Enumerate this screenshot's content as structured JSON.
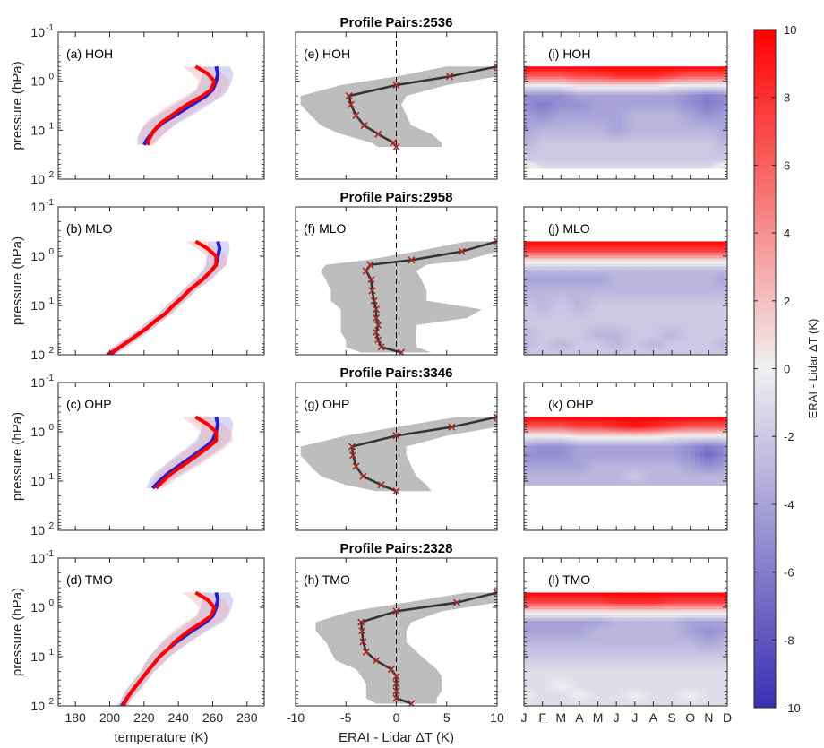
{
  "chart_data": {
    "type": "multi-panel",
    "stations": [
      "HOH",
      "MLO",
      "OHP",
      "TMO"
    ],
    "profile_pair_titles": [
      "Profile Pairs:2536",
      "Profile Pairs:2958",
      "Profile Pairs:3346",
      "Profile Pairs:2328"
    ],
    "panel_labels": {
      "temperature": [
        "(a) HOH",
        "(b) MLO",
        "(c) OHP",
        "(d) TMO"
      ],
      "difference": [
        "(e) HOH",
        "(f) MLO",
        "(g) OHP",
        "(h) TMO"
      ],
      "seasonal": [
        "(i) HOH",
        "(j) MLO",
        "(k) OHP",
        "(l) TMO"
      ]
    },
    "y_axis": {
      "label": "pressure (hPa)",
      "scale": "log",
      "reversed": true,
      "range": [
        0.1,
        100
      ],
      "ticks": [
        0.1,
        1,
        10,
        100
      ],
      "tick_labels": [
        [
          "10",
          "-1"
        ],
        [
          "10",
          "0"
        ],
        [
          "10",
          "1"
        ],
        [
          "10",
          "2"
        ]
      ]
    },
    "temperature_axis": {
      "label": "temperature (K)",
      "range": [
        170,
        290
      ],
      "ticks": [
        180,
        200,
        220,
        240,
        260,
        280
      ],
      "tick_labels": [
        "180",
        "200",
        "220",
        "240",
        "260",
        "280"
      ]
    },
    "difference_axis": {
      "label": "ERAI - Lidar ΔT (K)",
      "range": [
        -10,
        10
      ],
      "ticks": [
        -10,
        -5,
        0,
        5,
        10
      ],
      "tick_labels": [
        "-10",
        "-5",
        "0",
        "5",
        "10"
      ]
    },
    "month_axis": {
      "tick_labels": [
        "J",
        "F",
        "M",
        "A",
        "M",
        "J",
        "J",
        "A",
        "S",
        "O",
        "N",
        "D"
      ]
    },
    "colorbar": {
      "label": "ERAI - Lidar ΔT (K)",
      "range": [
        -10,
        10
      ],
      "ticks": [
        -10,
        -8,
        -6,
        -4,
        -2,
        0,
        2,
        4,
        6,
        8,
        10
      ],
      "tick_labels": [
        "-10",
        "-8",
        "-6",
        "-4",
        "-2",
        "0",
        "2",
        "4",
        "6",
        "8",
        "10"
      ],
      "colors": {
        "min": "#3b2eb3",
        "mid": "#f0f0f0",
        "max": "#ff0000"
      }
    },
    "series_colors": {
      "erai": "#ff0000",
      "lidar": "#1f1fd6",
      "mean_diff": "#333333",
      "markers": "#a52a2a",
      "spread": "#bdbdbd"
    },
    "temperature_profiles": [
      {
        "station": "HOH",
        "pressure": [
          0.5,
          0.7,
          1,
          1.5,
          2,
          3,
          5,
          7,
          10,
          15,
          20
        ],
        "erai": [
          250,
          257,
          261,
          259,
          254,
          245,
          236,
          230,
          226,
          223,
          222
        ],
        "lidar": [
          262,
          263,
          262,
          260,
          256,
          248,
          238,
          231,
          226,
          222,
          220
        ],
        "spread": [
          8,
          9,
          9,
          9,
          10,
          10,
          10,
          9,
          8,
          6,
          4
        ]
      },
      {
        "station": "MLO",
        "pressure": [
          0.5,
          0.7,
          1,
          1.5,
          2,
          3,
          5,
          7,
          10,
          15,
          20,
          30,
          50,
          70,
          100
        ],
        "erai": [
          250,
          257,
          262,
          262,
          259,
          254,
          246,
          242,
          237,
          232,
          227,
          221,
          212,
          206,
          199
        ],
        "lidar": [
          263,
          264,
          263,
          262,
          259,
          254,
          246,
          242,
          237,
          232,
          227,
          221,
          212,
          206,
          200
        ],
        "spread": [
          6,
          6,
          6,
          6,
          5,
          5,
          4,
          4,
          4,
          4,
          4,
          4,
          4,
          4,
          3
        ]
      },
      {
        "station": "OHP",
        "pressure": [
          0.5,
          0.7,
          1,
          1.5,
          2,
          3,
          5,
          7,
          10,
          14
        ],
        "erai": [
          250,
          257,
          262,
          262,
          258,
          251,
          242,
          236,
          231,
          227
        ],
        "lidar": [
          262,
          263,
          262,
          260,
          256,
          249,
          240,
          234,
          229,
          225
        ],
        "spread": [
          8,
          9,
          9,
          10,
          10,
          10,
          9,
          8,
          6,
          4
        ]
      },
      {
        "station": "TMO",
        "pressure": [
          0.5,
          0.7,
          1,
          1.5,
          2,
          3,
          5,
          7,
          10,
          15,
          20,
          30,
          50,
          70,
          100
        ],
        "erai": [
          250,
          257,
          261,
          259,
          254,
          246,
          238,
          234,
          229,
          225,
          222,
          218,
          213,
          210,
          208
        ],
        "lidar": [
          262,
          263,
          262,
          260,
          256,
          248,
          239,
          234,
          229,
          225,
          222,
          218,
          213,
          210,
          207
        ],
        "spread": [
          8,
          9,
          9,
          9,
          10,
          9,
          8,
          7,
          6,
          5,
          4,
          4,
          4,
          3,
          3
        ]
      }
    ],
    "difference_profiles": [
      {
        "station": "HOH",
        "pressure": [
          0.5,
          0.8,
          1.2,
          2,
          3,
          5,
          8,
          12,
          18,
          22
        ],
        "mean": [
          10,
          5.3,
          0,
          -4.7,
          -4.5,
          -4,
          -3.2,
          -1.8,
          -0.3,
          0
        ],
        "spread_low": [
          5,
          0,
          -5.5,
          -9.5,
          -9.5,
          -8.5,
          -7.5,
          -5.5,
          -2.5,
          -1.8
        ],
        "spread_high": [
          10,
          10,
          5,
          1,
          0.5,
          1,
          1.5,
          3.5,
          4.5,
          4.5
        ]
      },
      {
        "station": "MLO",
        "pressure": [
          0.5,
          0.8,
          1.2,
          1.5,
          2,
          3,
          5,
          8,
          12,
          18,
          25,
          35,
          50,
          70,
          90
        ],
        "mean": [
          10,
          6.5,
          1.5,
          -2.6,
          -3,
          -2.5,
          -2.4,
          -2.2,
          -2,
          -2,
          -1.8,
          -2,
          -1.8,
          -1.5,
          0.5
        ],
        "spread_low": [
          7,
          2,
          -3,
          -7,
          -7.5,
          -7,
          -6.5,
          -6.5,
          -5.5,
          -5.5,
          -5.5,
          -5.5,
          -5,
          -5,
          -3.5
        ],
        "spread_high": [
          10,
          10,
          7,
          3,
          2,
          2.5,
          3,
          3,
          8.5,
          7,
          2,
          2,
          2,
          2,
          3.5
        ]
      },
      {
        "station": "OHP",
        "pressure": [
          0.5,
          0.8,
          1.2,
          2,
          3,
          5,
          8,
          12,
          16
        ],
        "mean": [
          10,
          5.5,
          0,
          -4.4,
          -4.3,
          -4,
          -3.3,
          -1.5,
          0
        ],
        "spread_low": [
          6,
          0,
          -5,
          -9.5,
          -9.5,
          -8.5,
          -7.5,
          -5,
          -2
        ],
        "spread_high": [
          10,
          10,
          5,
          1,
          1,
          1.5,
          2,
          3,
          3.5
        ]
      },
      {
        "station": "TMO",
        "pressure": [
          0.5,
          0.8,
          1.2,
          2,
          3,
          5,
          8,
          12,
          18,
          25,
          35,
          50,
          70,
          90
        ],
        "mean": [
          10,
          6,
          0,
          -3.5,
          -3.4,
          -3.3,
          -3,
          -2,
          -0.5,
          0,
          0,
          0,
          0,
          1.5
        ],
        "spread_low": [
          7,
          1,
          -4.5,
          -8,
          -8,
          -7,
          -6.5,
          -6,
          -4,
          -3.5,
          -3,
          -3,
          -3,
          -2
        ],
        "spread_high": [
          10,
          10,
          4.5,
          1.5,
          1,
          1,
          2,
          3,
          4,
          4.5,
          4.5,
          4.5,
          4,
          4
        ]
      }
    ],
    "seasonal_difference": [
      {
        "station": "HOH",
        "pressure": [
          0.5,
          0.8,
          1.2,
          2,
          3,
          5,
          10,
          20,
          40,
          60
        ],
        "values": [
          [
            10,
            10,
            10,
            10,
            10,
            10,
            10,
            10,
            10,
            10,
            10,
            10
          ],
          [
            6,
            6,
            6,
            7,
            7,
            8,
            8,
            8,
            7,
            6,
            6,
            6
          ],
          [
            0,
            0,
            0,
            1,
            1,
            1,
            1,
            1,
            0,
            0,
            0,
            0
          ],
          [
            -5,
            -5,
            -5,
            -4,
            -4,
            -4,
            -4,
            -4,
            -4,
            -5,
            -6,
            -5
          ],
          [
            -5,
            -6,
            -5,
            -5,
            -4,
            -4,
            -4,
            -4,
            -4,
            -5,
            -6,
            -5
          ],
          [
            -4,
            -5,
            -4,
            -4,
            -4,
            -4,
            -3,
            -3,
            -3,
            -4,
            -5,
            -4
          ],
          [
            -4,
            -3,
            -3,
            -3,
            -3,
            -4,
            -3,
            -3,
            -3,
            -3,
            -3,
            -4
          ],
          [
            -3,
            -2,
            -2,
            -2,
            -2,
            -2,
            -2,
            -2,
            -2,
            -2,
            -2,
            -3
          ],
          [
            -2,
            -2,
            -2,
            -2,
            -2,
            -2,
            -2,
            -2,
            -2,
            -2,
            -2,
            -2
          ],
          [
            2,
            -1,
            -1,
            -1,
            -1,
            -1,
            -1,
            -1,
            -1,
            -1,
            -1,
            2
          ]
        ]
      },
      {
        "station": "MLO",
        "pressure": [
          0.5,
          0.8,
          1.2,
          2,
          3,
          5,
          10,
          20,
          40,
          60,
          100
        ],
        "values": [
          [
            10,
            10,
            10,
            10,
            10,
            10,
            10,
            10,
            10,
            10,
            10,
            10
          ],
          [
            7,
            7,
            7,
            7,
            7,
            7,
            7,
            7,
            7,
            7,
            7,
            7
          ],
          [
            1,
            1,
            1,
            1,
            1,
            1,
            1,
            1,
            1,
            1,
            1,
            1
          ],
          [
            -3,
            -3,
            -3,
            -3,
            -3,
            -3,
            -3,
            -3,
            -3,
            -3,
            -3,
            -3
          ],
          [
            -4,
            -4,
            -4,
            -4,
            -4,
            -3,
            -3,
            -3,
            -3,
            -3,
            -3,
            -4
          ],
          [
            -3,
            -3,
            -3,
            -3,
            -3,
            -3,
            -3,
            -3,
            -3,
            -3,
            -3,
            -3
          ],
          [
            -2,
            -3,
            -2,
            -3,
            -2,
            -2,
            -2,
            -2,
            -2,
            -2,
            -2,
            -2
          ],
          [
            -2,
            -2,
            -2,
            -2,
            -2,
            -2,
            -2,
            -2,
            -2,
            -2,
            -2,
            -2
          ],
          [
            -3,
            -2,
            -2,
            -2,
            -3,
            -3,
            -2,
            -2,
            -3,
            -2,
            -2,
            -2
          ],
          [
            -3,
            -2,
            -3,
            -2,
            -2,
            -3,
            -2,
            -3,
            -2,
            -2,
            -2,
            -3
          ],
          [
            -2,
            -2,
            -2,
            -2,
            -2,
            -2,
            -2,
            -2,
            -2,
            -2,
            -2,
            -2
          ]
        ]
      },
      {
        "station": "OHP",
        "pressure": [
          0.5,
          0.8,
          1.2,
          2,
          3,
          5,
          8,
          12
        ],
        "values": [
          [
            10,
            10,
            10,
            10,
            10,
            10,
            10,
            10,
            10,
            10,
            10,
            10
          ],
          [
            6,
            6,
            6,
            7,
            7,
            8,
            9,
            8,
            7,
            6,
            6,
            6
          ],
          [
            0,
            0,
            0,
            1,
            1,
            1,
            1,
            1,
            0,
            0,
            0,
            0
          ],
          [
            -4,
            -5,
            -5,
            -4,
            -4,
            -4,
            -4,
            -4,
            -4,
            -5,
            -6,
            -5
          ],
          [
            -5,
            -5,
            -5,
            -4,
            -4,
            -4,
            -4,
            -4,
            -4,
            -5,
            -7,
            -5
          ],
          [
            -4,
            -4,
            -4,
            -4,
            -3,
            -3,
            -3,
            -3,
            -3,
            -4,
            -5,
            -4
          ],
          [
            -3,
            -3,
            -3,
            -3,
            -3,
            -3,
            -2,
            -3,
            -3,
            -3,
            -3,
            -3
          ],
          [
            -3,
            -3,
            -3,
            -3,
            -3,
            -3,
            -3,
            -3,
            -3,
            -3,
            -3,
            -3
          ]
        ]
      },
      {
        "station": "TMO",
        "pressure": [
          0.5,
          0.8,
          1.2,
          2,
          3,
          5,
          10,
          20,
          40,
          60,
          100
        ],
        "values": [
          [
            10,
            10,
            10,
            10,
            10,
            10,
            10,
            10,
            10,
            10,
            10,
            10
          ],
          [
            7,
            7,
            7,
            7,
            7,
            8,
            8,
            8,
            7,
            7,
            7,
            7
          ],
          [
            1,
            1,
            1,
            1,
            1,
            1,
            1,
            1,
            1,
            1,
            1,
            1
          ],
          [
            -4,
            -4,
            -4,
            -4,
            -4,
            -3,
            -3,
            -3,
            -3,
            -4,
            -4,
            -4
          ],
          [
            -4,
            -4,
            -4,
            -4,
            -3,
            -3,
            -3,
            -3,
            -3,
            -4,
            -5,
            -4
          ],
          [
            -3,
            -3,
            -3,
            -3,
            -3,
            -3,
            -3,
            -3,
            -3,
            -3,
            -4,
            -3
          ],
          [
            -2,
            -2,
            -2,
            -2,
            -2,
            -2,
            -2,
            -2,
            -2,
            -2,
            -2,
            -2
          ],
          [
            -1,
            -1,
            -1,
            -1,
            -1,
            -1,
            -1,
            -1,
            -1,
            -1,
            -1,
            -1
          ],
          [
            -1,
            -1,
            0,
            -1,
            -1,
            -1,
            -1,
            -1,
            -1,
            -1,
            -1,
            -1
          ],
          [
            0,
            -1,
            -1,
            0,
            -1,
            -1,
            0,
            -1,
            -1,
            0,
            -1,
            -1
          ],
          [
            -1,
            -1,
            -1,
            -1,
            -1,
            -1,
            -1,
            -1,
            -1,
            -1,
            -1,
            -1
          ]
        ]
      }
    ]
  }
}
